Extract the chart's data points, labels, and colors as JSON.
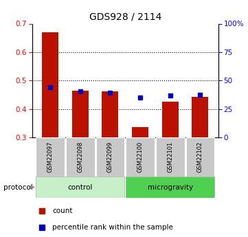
{
  "title": "GDS928 / 2114",
  "samples": [
    "GSM22097",
    "GSM22098",
    "GSM22099",
    "GSM22100",
    "GSM22101",
    "GSM22102"
  ],
  "groups": [
    "control",
    "control",
    "control",
    "microgravity",
    "microgravity",
    "microgravity"
  ],
  "control_color": "#c8f0c8",
  "microgravity_color": "#50d050",
  "sample_box_color": "#c8c8c8",
  "count_values": [
    0.67,
    0.465,
    0.462,
    0.336,
    0.425,
    0.442
  ],
  "percentile_values": [
    0.476,
    0.462,
    0.458,
    0.44,
    0.448,
    0.45
  ],
  "ylim_left": [
    0.3,
    0.7
  ],
  "ylim_right": [
    0,
    100
  ],
  "yticks_left": [
    0.3,
    0.4,
    0.5,
    0.6,
    0.7
  ],
  "yticks_right": [
    0,
    25,
    50,
    75,
    100
  ],
  "grid_yticks": [
    0.4,
    0.5,
    0.6
  ],
  "bar_color": "#bb1100",
  "dot_color": "#0000bb",
  "background_color": "#ffffff",
  "label_count": "count",
  "label_percentile": "percentile rank within the sample",
  "protocol_label": "protocol"
}
